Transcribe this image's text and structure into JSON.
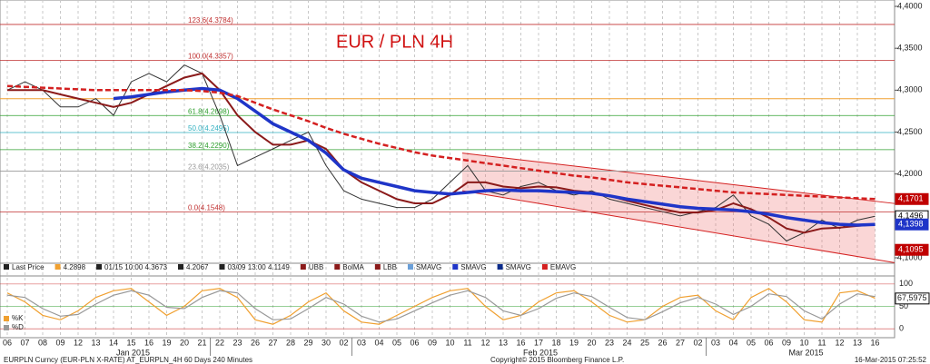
{
  "chart_data": [
    {
      "type": "line",
      "title": "EUR / PLN 4H",
      "categories": [
        "06",
        "07",
        "08",
        "09",
        "12",
        "13",
        "14",
        "15",
        "16",
        "19",
        "20",
        "21",
        "22",
        "23",
        "26",
        "27",
        "28",
        "29",
        "30",
        "02",
        "03",
        "04",
        "05",
        "06",
        "09",
        "10",
        "11",
        "12",
        "13",
        "16",
        "17",
        "18",
        "19",
        "20",
        "23",
        "24",
        "25",
        "26",
        "27",
        "02",
        "03",
        "04",
        "05",
        "06",
        "09",
        "10",
        "11",
        "12",
        "13",
        "16"
      ],
      "months": [
        "Jan 2015",
        "Feb 2015",
        "Mar 2015"
      ],
      "ylim": [
        4.0935,
        4.4076
      ],
      "yticks": [
        {
          "value": 4.1,
          "label": "4,1000"
        },
        {
          "value": 4.15,
          "label": "4,1500"
        },
        {
          "value": 4.2,
          "label": "4,2000"
        },
        {
          "value": 4.25,
          "label": "4,2500"
        },
        {
          "value": 4.3,
          "label": "4,3000"
        },
        {
          "value": 4.35,
          "label": "4,3500"
        },
        {
          "value": 4.4,
          "label": "4,4000"
        }
      ],
      "grid": true,
      "series": [
        {
          "name": "Last Price",
          "color": "#333333",
          "values": [
            4.3,
            4.31,
            4.3,
            4.28,
            4.28,
            4.29,
            4.27,
            4.31,
            4.32,
            4.31,
            4.33,
            4.32,
            4.27,
            4.21,
            4.22,
            4.23,
            4.24,
            4.25,
            4.21,
            4.18,
            4.17,
            4.165,
            4.16,
            4.16,
            4.17,
            4.19,
            4.21,
            4.18,
            4.175,
            4.185,
            4.19,
            4.18,
            4.175,
            4.18,
            4.17,
            4.165,
            4.16,
            4.155,
            4.15,
            4.155,
            4.16,
            4.175,
            4.15,
            4.14,
            4.12,
            4.13,
            4.145,
            4.135,
            4.145,
            4.1496
          ]
        },
        {
          "name": "BolMA",
          "color": "#8b1a1a",
          "values": [
            4.3,
            4.3,
            4.3,
            4.295,
            4.29,
            4.285,
            4.28,
            4.285,
            4.295,
            4.305,
            4.315,
            4.32,
            4.3,
            4.27,
            4.25,
            4.235,
            4.235,
            4.24,
            4.23,
            4.205,
            4.19,
            4.18,
            4.17,
            4.165,
            4.165,
            4.175,
            4.19,
            4.19,
            4.185,
            4.183,
            4.185,
            4.184,
            4.18,
            4.178,
            4.174,
            4.168,
            4.163,
            4.158,
            4.154,
            4.154,
            4.157,
            4.165,
            4.158,
            4.148,
            4.135,
            4.13,
            4.135,
            4.136,
            4.138,
            4.1398
          ]
        },
        {
          "name": "SMAVG",
          "color": "#1f35c8",
          "values": [
            null,
            null,
            null,
            null,
            null,
            null,
            4.29,
            4.292,
            4.295,
            4.298,
            4.3,
            4.302,
            4.3,
            4.29,
            4.275,
            4.26,
            4.25,
            4.24,
            4.225,
            4.205,
            4.195,
            4.19,
            4.185,
            4.18,
            4.178,
            4.176,
            4.178,
            4.18,
            4.181,
            4.18,
            4.18,
            4.179,
            4.178,
            4.177,
            4.174,
            4.17,
            4.167,
            4.164,
            4.161,
            4.159,
            4.158,
            4.157,
            4.155,
            4.152,
            4.148,
            4.145,
            4.142,
            4.14,
            4.139,
            4.1398
          ]
        },
        {
          "name": "EMAVG",
          "color": "#d42020",
          "values": [
            4.305,
            4.304,
            4.303,
            4.302,
            4.301,
            4.3,
            4.3,
            4.3,
            4.3,
            4.3,
            4.3,
            4.299,
            4.297,
            4.293,
            4.285,
            4.277,
            4.27,
            4.263,
            4.255,
            4.248,
            4.242,
            4.236,
            4.231,
            4.226,
            4.222,
            4.219,
            4.216,
            4.213,
            4.21,
            4.207,
            4.204,
            4.201,
            4.198,
            4.196,
            4.193,
            4.19,
            4.188,
            4.186,
            4.184,
            4.182,
            4.18,
            4.178,
            4.177,
            4.176,
            4.175,
            4.174,
            4.173,
            4.172,
            4.171,
            4.1701
          ]
        }
      ],
      "fib_levels": [
        {
          "value": 4.3784,
          "label": "123.6(4.3784)"
        },
        {
          "value": 4.3357,
          "label": "100.0(4.3357)"
        },
        {
          "value": 4.2698,
          "label": "61.8(4.2698)"
        },
        {
          "value": 4.2495,
          "label": "50.0(4.2495)"
        },
        {
          "value": 4.229,
          "label": "38.2(4.2290)"
        },
        {
          "value": 4.2035,
          "label": "23.6(4.2035)"
        },
        {
          "value": 4.1548,
          "label": "0.0(4.1548)"
        }
      ],
      "channel": {
        "upper": [
          4.225,
          4.1675
        ],
        "lower": [
          4.18,
          4.098
        ]
      },
      "price_labels": [
        {
          "value": 4.1701,
          "label": "4,1701",
          "color": "#c00000"
        },
        {
          "value": 4.1496,
          "label": "4,1496",
          "color": "#000000"
        },
        {
          "value": 4.1398,
          "label": "4,1398",
          "color": "#1f35c8"
        },
        {
          "value": 4.1095,
          "label": "4,1095",
          "color": "#c00000"
        }
      ],
      "legend": [
        {
          "label": "Last Price",
          "color": "#222222"
        },
        {
          "label": "4.2898",
          "color": "#f0a030"
        },
        {
          "label": "01/15 10:00 4.3673",
          "color": "#222222"
        },
        {
          "label": "4.2067",
          "color": "#222222"
        },
        {
          "label": "03/09 13:00 4.1149",
          "color": "#222222"
        },
        {
          "label": "UBB",
          "color": "#8b1a1a"
        },
        {
          "label": "BolMA",
          "color": "#8b1a1a"
        },
        {
          "label": "LBB",
          "color": "#8b1a1a"
        },
        {
          "label": "SMAVG",
          "color": "#6a9fd8"
        },
        {
          "label": "SMAVG",
          "color": "#1f35c8"
        },
        {
          "label": "SMAVG",
          "color": "#0a2a8a"
        },
        {
          "label": "EMAVG",
          "color": "#d42020"
        }
      ]
    },
    {
      "type": "line",
      "ylim": [
        -20,
        118
      ],
      "yticks": [
        0,
        50,
        100
      ],
      "current": {
        "value": 67.5975,
        "label": "67,5975"
      },
      "series": [
        {
          "name": "%K",
          "color": "#f0a030",
          "values": [
            80,
            60,
            30,
            20,
            40,
            70,
            85,
            90,
            60,
            30,
            50,
            85,
            90,
            70,
            20,
            10,
            30,
            60,
            80,
            40,
            15,
            10,
            30,
            50,
            70,
            85,
            90,
            50,
            20,
            30,
            60,
            80,
            85,
            60,
            30,
            15,
            20,
            50,
            70,
            75,
            40,
            20,
            70,
            90,
            60,
            20,
            15,
            80,
            85,
            68
          ]
        },
        {
          "name": "%D",
          "color": "#999999",
          "values": [
            75,
            70,
            45,
            28,
            32,
            55,
            75,
            85,
            75,
            48,
            45,
            70,
            85,
            80,
            45,
            20,
            22,
            45,
            70,
            55,
            28,
            15,
            22,
            40,
            58,
            75,
            85,
            70,
            40,
            30,
            45,
            68,
            80,
            72,
            48,
            25,
            20,
            38,
            58,
            70,
            55,
            32,
            50,
            78,
            72,
            40,
            22,
            55,
            78,
            72
          ]
        }
      ]
    }
  ],
  "footer": {
    "left": "EURPLN Curncy (EUR-PLN X-RATE) AT_EURPLN_4H 60 Days 240 Minutes",
    "center": "Copyright© 2015 Bloomberg Finance L.P.",
    "right": "16-Mar-2015 07:25:52"
  }
}
